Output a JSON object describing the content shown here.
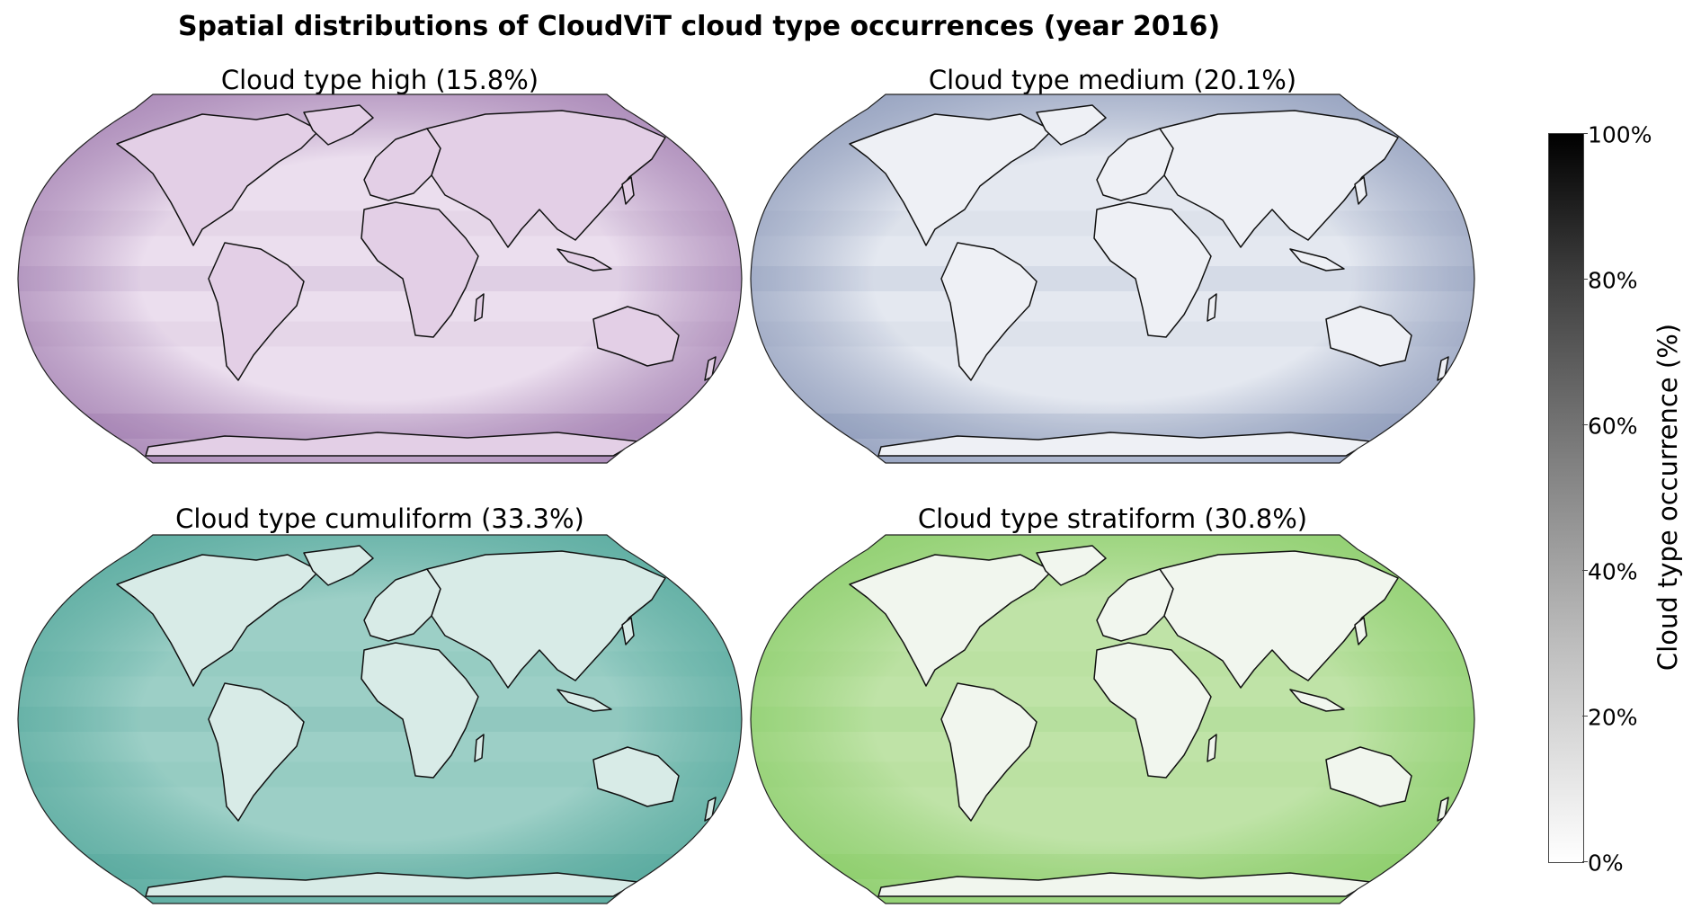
{
  "title": "Spatial distributions of CloudViT cloud type occurrences (year 2016)",
  "panels": [
    {
      "label": "Cloud type high (15.8%)",
      "color": "#7a4a8f",
      "fill": "#ebdeee",
      "land_fill": "#e3cfe6"
    },
    {
      "label": "Cloud type medium (20.1%)",
      "color": "#5d6f9c",
      "fill": "#e4e8f0",
      "land_fill": "#eef0f5"
    },
    {
      "label": "Cloud type cumuliform (33.3%)",
      "color": "#2f9487",
      "fill": "#9ccfc6",
      "land_fill": "#d8ebe7"
    },
    {
      "label": "Cloud type stratiform (30.8%)",
      "color": "#6fc24a",
      "fill": "#bfe3a7",
      "land_fill": "#f1f6ee"
    }
  ],
  "colorbar": {
    "label": "Cloud type occurrence (%)",
    "ticks": [
      "100%",
      "80%",
      "60%",
      "40%",
      "20%",
      "0%"
    ],
    "colors": [
      "#ffffff",
      "#000000"
    ]
  }
}
